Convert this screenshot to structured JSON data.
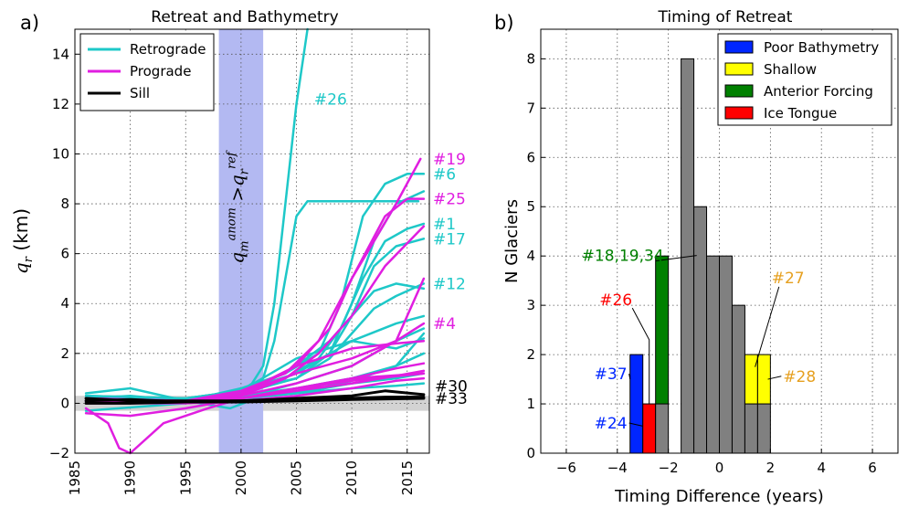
{
  "chart_data": [
    {
      "type": "line",
      "panel_label": "a)",
      "title": "Retreat and Bathymetry",
      "ylabel": "q_r (km)",
      "xlim": [
        1985,
        2017
      ],
      "ylim": [
        -2,
        15
      ],
      "xticks": [
        "1985",
        "1990",
        "1995",
        "2000",
        "2005",
        "2010",
        "2015"
      ],
      "yticks": [
        "−2",
        "0",
        "2",
        "4",
        "6",
        "8",
        "10",
        "12",
        "14"
      ],
      "grid": true,
      "legend_position": "top-left",
      "shaded_period": {
        "x": [
          1998,
          2002
        ],
        "label": "q_m^anom > q_r^ref",
        "color": "#b3b9f2"
      },
      "zero_band": {
        "y": [
          -0.3,
          0.3
        ],
        "color": "#d3d3d3"
      },
      "categories_legend": [
        {
          "name": "Retrograde",
          "color": "#1ec8c8"
        },
        {
          "name": "Prograde",
          "color": "#e01ee0"
        },
        {
          "name": "Sill",
          "color": "#000000"
        }
      ],
      "series": [
        {
          "group": "retrograde",
          "label": "#26",
          "x": [
            1986,
            1990,
            1995,
            1999,
            2001,
            2002,
            2003,
            2004,
            2005,
            2006
          ],
          "y": [
            0.2,
            0.3,
            0.1,
            0.2,
            0.8,
            1.5,
            4,
            8,
            12,
            15
          ]
        },
        {
          "group": "retrograde",
          "label": "",
          "x": [
            1986,
            1995,
            2000,
            2002,
            2003,
            2004,
            2005,
            2006,
            2008,
            2012,
            2016
          ],
          "y": [
            0.1,
            0.1,
            0.3,
            1,
            2.5,
            5,
            7.5,
            8.1,
            8.1,
            8.1,
            8.1
          ]
        },
        {
          "group": "retrograde",
          "label": "#6",
          "x": [
            1986,
            1995,
            2000,
            2004,
            2007,
            2009,
            2011,
            2013,
            2015,
            2016.5
          ],
          "y": [
            0.2,
            0.1,
            0.6,
            1.2,
            2,
            4,
            7.5,
            8.8,
            9.2,
            9.2
          ]
        },
        {
          "group": "retrograde",
          "label": "#1",
          "x": [
            1986,
            1995,
            2000,
            2004,
            2007,
            2009,
            2011,
            2013,
            2015,
            2016.5
          ],
          "y": [
            0.3,
            0.1,
            0.4,
            1,
            1.8,
            3,
            5,
            6.5,
            7,
            7.2
          ]
        },
        {
          "group": "retrograde",
          "label": "#17",
          "x": [
            1986,
            1995,
            2000,
            2005,
            2008,
            2010,
            2012,
            2014,
            2016.5
          ],
          "y": [
            0.1,
            0.2,
            0.5,
            1.2,
            2,
            3.5,
            5.5,
            6.3,
            6.6
          ]
        },
        {
          "group": "retrograde",
          "label": "",
          "x": [
            1986,
            1995,
            2000,
            2005,
            2008,
            2010,
            2012,
            2014,
            2016.5
          ],
          "y": [
            0.2,
            0.1,
            0.4,
            1,
            2,
            4,
            6.5,
            8,
            8.5
          ]
        },
        {
          "group": "retrograde",
          "label": "#12",
          "x": [
            1986,
            1995,
            2000,
            2005,
            2008,
            2010,
            2012,
            2014,
            2016.5
          ],
          "y": [
            0.3,
            0.2,
            0.5,
            1,
            1.8,
            2.8,
            3.8,
            4.3,
            4.8
          ]
        },
        {
          "group": "retrograde",
          "label": "",
          "x": [
            1986,
            1995,
            2000,
            2005,
            2008,
            2010,
            2012,
            2014,
            2016.5
          ],
          "y": [
            0.1,
            0.1,
            0.3,
            1.5,
            2.5,
            3.5,
            4.5,
            4.8,
            4.6
          ]
        },
        {
          "group": "retrograde",
          "label": "",
          "x": [
            1986,
            1995,
            2000,
            2005,
            2010,
            2014,
            2016.5
          ],
          "y": [
            0.2,
            0.1,
            0.4,
            1.2,
            2.5,
            3.2,
            3.5
          ]
        },
        {
          "group": "retrograde",
          "label": "",
          "x": [
            1986,
            1995,
            2000,
            2005,
            2010,
            2014,
            2016.5
          ],
          "y": [
            -0.3,
            0,
            0.2,
            0.8,
            1.5,
            2.5,
            3
          ]
        },
        {
          "group": "retrograde",
          "label": "",
          "x": [
            1986,
            1995,
            2000,
            2005,
            2010,
            2014,
            2016.5
          ],
          "y": [
            0.3,
            0.2,
            0.5,
            1.8,
            2.5,
            2.2,
            2.6
          ]
        },
        {
          "group": "retrograde",
          "label": "",
          "x": [
            1986,
            1995,
            2000,
            2005,
            2010,
            2014,
            2016.5
          ],
          "y": [
            0.1,
            0,
            0.3,
            0.6,
            1,
            1.5,
            2
          ]
        },
        {
          "group": "retrograde",
          "label": "",
          "x": [
            1986,
            1995,
            2000,
            2005,
            2010,
            2014,
            2016.5
          ],
          "y": [
            0.1,
            0.1,
            0.2,
            0.4,
            0.8,
            1,
            1.2
          ]
        },
        {
          "group": "retrograde",
          "label": "",
          "x": [
            1986,
            1995,
            2000,
            2005,
            2010,
            2014,
            2016.5
          ],
          "y": [
            0.2,
            0.1,
            0.2,
            0.4,
            0.6,
            0.7,
            0.8
          ]
        },
        {
          "group": "retrograde",
          "label": "",
          "x": [
            1986,
            1990,
            1995,
            1999,
            2002,
            2006,
            2010,
            2014,
            2016.5
          ],
          "y": [
            0.4,
            0.6,
            0.1,
            -0.2,
            0.3,
            0.5,
            0.9,
            1.5,
            2.8
          ]
        },
        {
          "group": "prograde",
          "label": "#19",
          "x": [
            1986,
            1995,
            2000,
            2005,
            2008,
            2010,
            2012,
            2014,
            2016.2
          ],
          "y": [
            0.1,
            0.1,
            0.4,
            1.5,
            3,
            5,
            6.5,
            8,
            9.8
          ]
        },
        {
          "group": "prograde",
          "label": "#25",
          "x": [
            1986,
            1995,
            2000,
            2004,
            2007,
            2010,
            2013,
            2015,
            2016.5
          ],
          "y": [
            0.2,
            0.1,
            0.5,
            1.2,
            2.5,
            5,
            7.5,
            8.2,
            8.2
          ]
        },
        {
          "group": "prograde",
          "label": "",
          "x": [
            1986,
            1995,
            2000,
            2004,
            2007,
            2010,
            2013,
            2016.5
          ],
          "y": [
            0.1,
            0.1,
            0.3,
            1,
            2,
            3.5,
            5.5,
            7.1
          ]
        },
        {
          "group": "prograde",
          "label": "",
          "x": [
            1986,
            1995,
            2000,
            2005,
            2010,
            2014,
            2016.5
          ],
          "y": [
            0.2,
            0.1,
            0.3,
            0.8,
            1.5,
            2.5,
            5
          ]
        },
        {
          "group": "prograde",
          "label": "#4",
          "x": [
            1986,
            1995,
            2000,
            2005,
            2010,
            2014,
            2016.5
          ],
          "y": [
            0.1,
            0.1,
            0.4,
            1.2,
            1.8,
            2.5,
            3.2
          ]
        },
        {
          "group": "prograde",
          "label": "",
          "x": [
            1986,
            1995,
            2000,
            2005,
            2010,
            2014,
            2016.5
          ],
          "y": [
            0,
            0.1,
            0.3,
            1.5,
            2.2,
            2.4,
            2.5
          ]
        },
        {
          "group": "prograde",
          "label": "",
          "x": [
            1986,
            1995,
            2000,
            2005,
            2010,
            2014,
            2016.5
          ],
          "y": [
            0.1,
            0.1,
            0.2,
            0.6,
            1,
            1.4,
            1.6
          ]
        },
        {
          "group": "prograde",
          "label": "",
          "x": [
            1986,
            1995,
            2000,
            2005,
            2010,
            2014,
            2016.5
          ],
          "y": [
            0.1,
            0,
            0.2,
            0.5,
            0.8,
            1.1,
            1.3
          ]
        },
        {
          "group": "prograde",
          "label": "",
          "x": [
            1986,
            1995,
            2000,
            2005,
            2010,
            2014,
            2016.5
          ],
          "y": [
            0,
            0,
            0.1,
            0.3,
            0.6,
            0.9,
            1
          ]
        },
        {
          "group": "prograde",
          "label": "",
          "x": [
            1986,
            1988,
            1989,
            1990,
            1993,
            1997,
            2000,
            2005,
            2010,
            2016.5
          ],
          "y": [
            -0.2,
            -0.8,
            -1.8,
            -2,
            -0.8,
            -0.2,
            0.2,
            0.5,
            1,
            1.2
          ]
        },
        {
          "group": "prograde",
          "label": "",
          "x": [
            1986,
            1990,
            1995,
            2000,
            2005,
            2010,
            2016.5
          ],
          "y": [
            -0.4,
            -0.5,
            -0.2,
            0.2,
            0.6,
            0.9,
            1.2
          ]
        },
        {
          "group": "sill",
          "label": "#30",
          "x": [
            1986,
            1990,
            1995,
            2000,
            2005,
            2010,
            2013,
            2016.5
          ],
          "y": [
            0.2,
            0.1,
            0.1,
            0.1,
            0.2,
            0.3,
            0.5,
            0.35
          ]
        },
        {
          "group": "sill",
          "label": "#33",
          "x": [
            1986,
            1990,
            1995,
            2000,
            2005,
            2010,
            2013,
            2016.5
          ],
          "y": [
            0.1,
            0.15,
            0.05,
            0.1,
            0.15,
            0.2,
            0.25,
            0.25
          ]
        },
        {
          "group": "sill",
          "label": "",
          "x": [
            1986,
            1990,
            1995,
            2000,
            2005,
            2010,
            2016.5
          ],
          "y": [
            0,
            0,
            0.05,
            0.05,
            0.1,
            0.15,
            0.2
          ]
        }
      ]
    },
    {
      "type": "bar",
      "panel_label": "b)",
      "title": "Timing of Retreat",
      "xlabel": "Timing Difference (years)",
      "ylabel": "N Glaciers",
      "xlim": [
        -7,
        7
      ],
      "ylim": [
        0,
        8.6
      ],
      "xticks": [
        "−6",
        "−4",
        "−2",
        "0",
        "2",
        "4",
        "6"
      ],
      "yticks": [
        "0",
        "1",
        "2",
        "3",
        "4",
        "5",
        "6",
        "7",
        "8"
      ],
      "grid": true,
      "legend_position": "top-right",
      "bar_width": 0.5,
      "legend": [
        {
          "name": "Poor Bathymetry",
          "color": "#0026ff"
        },
        {
          "name": "Shallow",
          "color": "#ffff00"
        },
        {
          "name": "Anterior Forcing",
          "color": "#008000"
        },
        {
          "name": "Ice Tongue",
          "color": "#ff0000"
        }
      ],
      "bars": [
        {
          "x": -3.25,
          "bottom": 0,
          "value": 2,
          "color": "#0026ff"
        },
        {
          "x": -2.75,
          "bottom": 0,
          "value": 1,
          "color": "#ff0000"
        },
        {
          "x": -2.25,
          "bottom": 0,
          "value": 1,
          "color": "#808080"
        },
        {
          "x": -2.25,
          "bottom": 1,
          "value": 3,
          "color": "#008000"
        },
        {
          "x": -1.25,
          "bottom": 0,
          "value": 8,
          "color": "#808080"
        },
        {
          "x": -0.75,
          "bottom": 0,
          "value": 5,
          "color": "#808080"
        },
        {
          "x": -0.25,
          "bottom": 0,
          "value": 4,
          "color": "#808080"
        },
        {
          "x": 0.25,
          "bottom": 0,
          "value": 4,
          "color": "#808080"
        },
        {
          "x": 0.75,
          "bottom": 0,
          "value": 3,
          "color": "#808080"
        },
        {
          "x": 1.25,
          "bottom": 0,
          "value": 1,
          "color": "#808080"
        },
        {
          "x": 1.25,
          "bottom": 1,
          "value": 1,
          "color": "#ffff00"
        },
        {
          "x": 1.75,
          "bottom": 0,
          "value": 1,
          "color": "#808080"
        },
        {
          "x": 1.75,
          "bottom": 1,
          "value": 1,
          "color": "#ffff00"
        }
      ],
      "annotations": [
        {
          "text": "#18,19,34",
          "color": "#008000",
          "text_at": [
            -5.4,
            3.9
          ],
          "point": [
            -2.5,
            3.9
          ]
        },
        {
          "text": "#26",
          "color": "#ff0000",
          "text_at": [
            -4.7,
            3.0
          ],
          "point": [
            -2.75,
            1.0
          ]
        },
        {
          "text": "#37",
          "color": "#0026ff",
          "text_at": [
            -4.9,
            1.5
          ],
          "point": [
            -3.5,
            1.5
          ]
        },
        {
          "text": "#24",
          "color": "#0026ff",
          "text_at": [
            -4.9,
            0.5
          ],
          "point": [
            -3.0,
            0.55
          ]
        },
        {
          "text": "#27",
          "color": "#e6a020",
          "text_at": [
            2.05,
            3.45
          ],
          "point": [
            1.4,
            1.75
          ]
        },
        {
          "text": "#28",
          "color": "#e6a020",
          "text_at": [
            2.5,
            1.45
          ],
          "point": [
            1.9,
            1.5
          ]
        }
      ]
    }
  ]
}
